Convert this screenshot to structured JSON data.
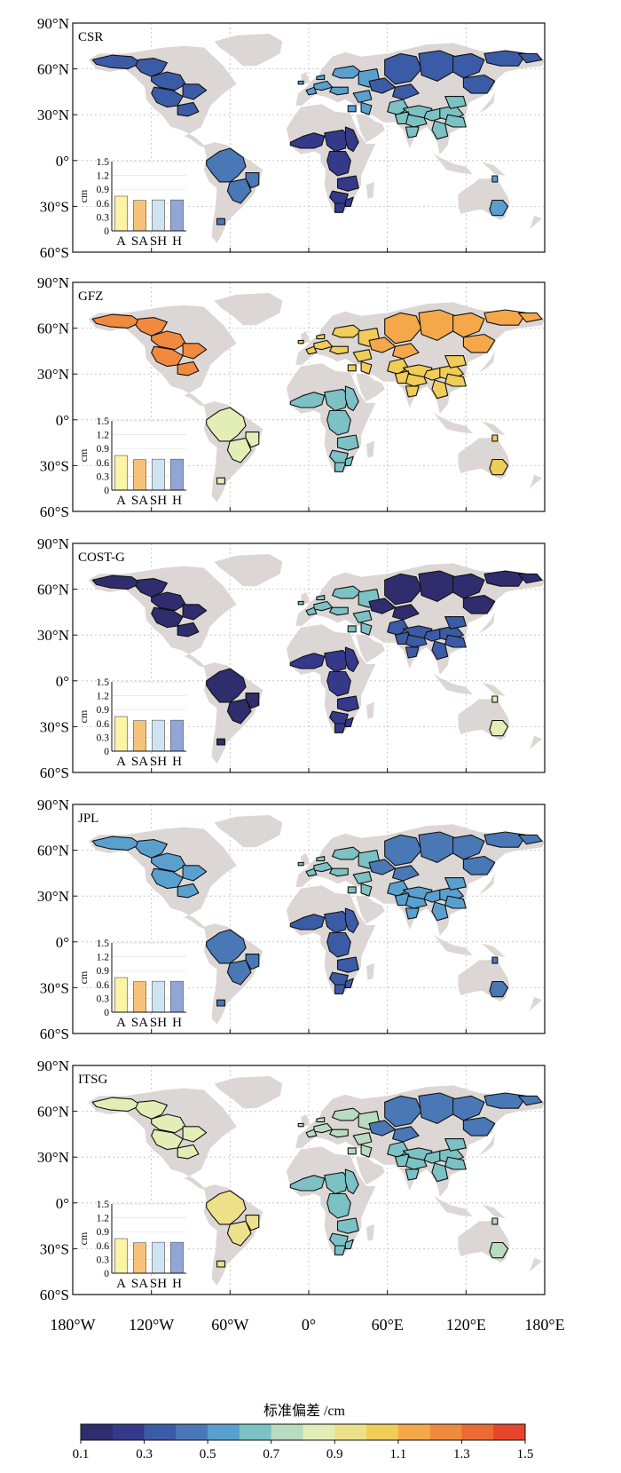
{
  "colors": {
    "land": "#dcd6d4",
    "border": "#111111",
    "grid": "#bdbdbd",
    "bar_colors": [
      "#fbf3a6",
      "#f7c27a",
      "#cfe3f2",
      "#8fa6d6"
    ]
  },
  "icons": {
    "degree_symbol": "°"
  },
  "axis": {
    "y_ticks": [
      {
        "value": 90,
        "label": "90°N"
      },
      {
        "value": 60,
        "label": "60°N"
      },
      {
        "value": 30,
        "label": "30°N"
      },
      {
        "value": 0,
        "label": "0°"
      },
      {
        "value": -30,
        "label": "30°S"
      },
      {
        "value": -60,
        "label": "60°S"
      }
    ],
    "x_ticks": [
      {
        "value": -180,
        "label": "180°W"
      },
      {
        "value": -120,
        "label": "120°W"
      },
      {
        "value": -60,
        "label": "60°W"
      },
      {
        "value": 0,
        "label": "0°"
      },
      {
        "value": 60,
        "label": "60°E"
      },
      {
        "value": 120,
        "label": "120°E"
      },
      {
        "value": 180,
        "label": "180°E"
      }
    ]
  },
  "colorbar": {
    "title": "标准偏差 /cm",
    "min": 0.1,
    "max": 1.5,
    "tick_labels": [
      "0.1",
      "0.3",
      "0.5",
      "0.7",
      "0.9",
      "1.1",
      "1.3",
      "1.5"
    ],
    "colors": [
      "#2f2d6e",
      "#35398a",
      "#3c5ba6",
      "#4a78b6",
      "#5aa0cf",
      "#7cc2c4",
      "#b8dcc0",
      "#e3edb6",
      "#ece18a",
      "#f0cc58",
      "#f4a84a",
      "#f08a3e",
      "#ec6a33",
      "#e6452b"
    ]
  },
  "chart_data": [
    {
      "type": "map",
      "title": "CSR",
      "xlim": [
        -180,
        180
      ],
      "ylim": [
        -60,
        90
      ],
      "basin_colors": {
        "north_america": "#3c5ba6",
        "amazon": "#4a78b6",
        "africa": "#35398a",
        "europe": "#5aa0cf",
        "siberia": "#3c5ba6",
        "south_asia": "#7cc2c4",
        "australia": "#5aa0cf"
      },
      "inset": {
        "type": "bar",
        "categories": [
          "A",
          "SA",
          "SH",
          "H"
        ],
        "values": [
          0.75,
          0.66,
          0.67,
          0.67
        ],
        "ylabel": "cm",
        "ylim": [
          0,
          1.5
        ],
        "y_ticks": [
          "0",
          "0.3",
          "0.6",
          "0.9",
          "1.2",
          "1.5"
        ]
      }
    },
    {
      "type": "map",
      "title": "GFZ",
      "xlim": [
        -180,
        180
      ],
      "ylim": [
        -60,
        90
      ],
      "basin_colors": {
        "north_america": "#f08a3e",
        "amazon": "#e3edb6",
        "africa": "#7cc2c4",
        "europe": "#f0cc58",
        "siberia": "#f4a84a",
        "south_asia": "#f0cc58",
        "australia": "#f0cc58"
      },
      "inset": {
        "type": "bar",
        "categories": [
          "A",
          "SA",
          "SH",
          "H"
        ],
        "values": [
          0.75,
          0.66,
          0.67,
          0.67
        ],
        "ylabel": "cm",
        "ylim": [
          0,
          1.5
        ],
        "y_ticks": [
          "0",
          "0.3",
          "0.6",
          "0.9",
          "1.2",
          "1.5"
        ]
      }
    },
    {
      "type": "map",
      "title": "COST-G",
      "xlim": [
        -180,
        180
      ],
      "ylim": [
        -60,
        90
      ],
      "basin_colors": {
        "north_america": "#2f2d6e",
        "amazon": "#2f2d6e",
        "africa": "#35398a",
        "europe": "#7cc2c4",
        "siberia": "#2f2d6e",
        "south_asia": "#3c5ba6",
        "australia": "#e3edb6"
      },
      "inset": {
        "type": "bar",
        "categories": [
          "A",
          "SA",
          "SH",
          "H"
        ],
        "values": [
          0.75,
          0.66,
          0.67,
          0.67
        ],
        "ylabel": "cm",
        "ylim": [
          0,
          1.5
        ],
        "y_ticks": [
          "0",
          "0.3",
          "0.6",
          "0.9",
          "1.2",
          "1.5"
        ]
      }
    },
    {
      "type": "map",
      "title": "JPL",
      "xlim": [
        -180,
        180
      ],
      "ylim": [
        -60,
        90
      ],
      "basin_colors": {
        "north_america": "#5aa0cf",
        "amazon": "#4a78b6",
        "africa": "#3c5ba6",
        "europe": "#7cc2c4",
        "siberia": "#4a78b6",
        "south_asia": "#5aa0cf",
        "australia": "#4a78b6"
      },
      "inset": {
        "type": "bar",
        "categories": [
          "A",
          "SA",
          "SH",
          "H"
        ],
        "values": [
          0.75,
          0.66,
          0.67,
          0.67
        ],
        "ylabel": "cm",
        "ylim": [
          0,
          1.5
        ],
        "y_ticks": [
          "0",
          "0.3",
          "0.6",
          "0.9",
          "1.2",
          "1.5"
        ]
      }
    },
    {
      "type": "map",
      "title": "ITSG",
      "xlim": [
        -180,
        180
      ],
      "ylim": [
        -60,
        90
      ],
      "basin_colors": {
        "north_america": "#e3edb6",
        "amazon": "#ece18a",
        "africa": "#7cc2c4",
        "europe": "#b8dcc0",
        "siberia": "#4a78b6",
        "south_asia": "#7cc2c4",
        "australia": "#b8dcc0"
      },
      "inset": {
        "type": "bar",
        "categories": [
          "A",
          "SA",
          "SH",
          "H"
        ],
        "values": [
          0.75,
          0.66,
          0.67,
          0.67
        ],
        "ylabel": "cm",
        "ylim": [
          0,
          1.5
        ],
        "y_ticks": [
          "0",
          "0.3",
          "0.6",
          "0.9",
          "1.2",
          "1.5"
        ]
      }
    }
  ]
}
